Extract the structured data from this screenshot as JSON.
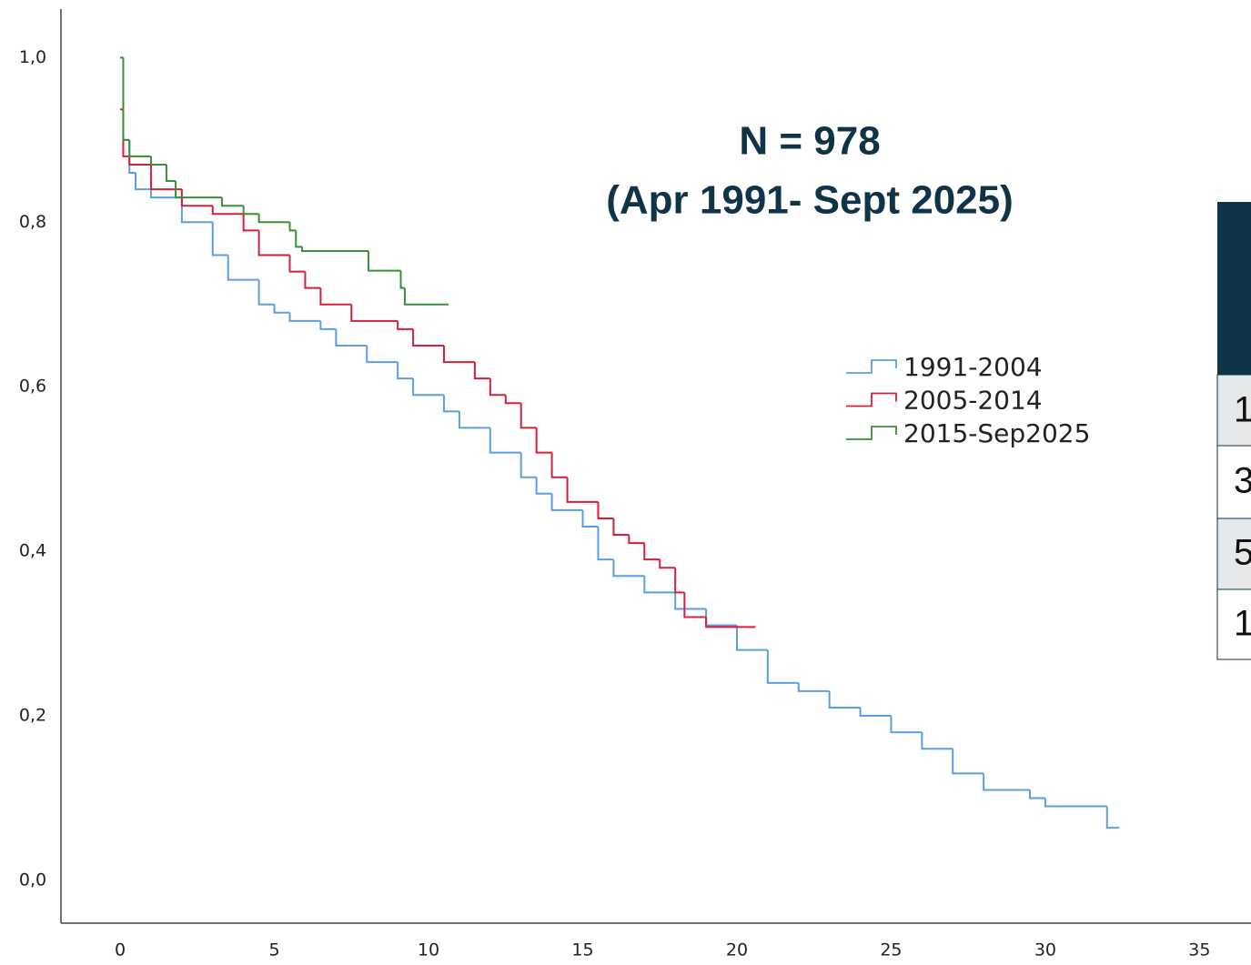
{
  "chart_data": {
    "type": "step",
    "annotations": [
      "N = 978",
      "(Apr 1991- Sept 2025)"
    ],
    "xlim": [
      -1.92,
      36.67
    ],
    "xticks": [
      0,
      5,
      10,
      15,
      20,
      25,
      30,
      35
    ],
    "ylim": [
      -0.052,
      1.059
    ],
    "yticks": [
      {
        "value": 0,
        "label": "0,0"
      },
      {
        "value": 0.2,
        "label": "0,2"
      },
      {
        "value": 0.4,
        "label": "0,4"
      },
      {
        "value": 0.6,
        "label": "0,6"
      },
      {
        "value": 0.8,
        "label": "0,8"
      },
      {
        "value": 1,
        "label": "1,0"
      }
    ],
    "series": [
      {
        "name": "1991-2004",
        "color": "#5b9ee6",
        "x": [
          0,
          0.1,
          0.3,
          0.5,
          1,
          2,
          3,
          3.5,
          4.5,
          5,
          5.5,
          6.5,
          7,
          8,
          9,
          9.5,
          10.5,
          11,
          12,
          13,
          13.5,
          14,
          15,
          15.5,
          16,
          17,
          18,
          19,
          20,
          21,
          22,
          23,
          24,
          25,
          26,
          27,
          28,
          29.5,
          30,
          32,
          32.4
        ],
        "values": [
          1.0,
          0.9,
          0.86,
          0.84,
          0.83,
          0.8,
          0.76,
          0.73,
          0.7,
          0.69,
          0.68,
          0.67,
          0.65,
          0.63,
          0.61,
          0.59,
          0.57,
          0.55,
          0.52,
          0.49,
          0.47,
          0.45,
          0.43,
          0.39,
          0.37,
          0.35,
          0.33,
          0.31,
          0.28,
          0.24,
          0.23,
          0.21,
          0.2,
          0.18,
          0.16,
          0.13,
          0.11,
          0.1,
          0.09,
          0.064,
          0.064
        ]
      },
      {
        "name": "2005-2014",
        "color": "#d81e3a",
        "x": [
          0,
          0.1,
          0.3,
          1,
          2,
          3,
          4,
          4.5,
          5.5,
          6,
          6.5,
          7.5,
          9,
          9.5,
          10.5,
          11.5,
          12,
          12.5,
          13,
          13.5,
          14,
          14.5,
          15.5,
          16,
          16.5,
          17,
          17.5,
          18,
          18.3,
          19,
          20.6
        ],
        "values": [
          0.937,
          0.88,
          0.87,
          0.84,
          0.82,
          0.81,
          0.79,
          0.76,
          0.74,
          0.72,
          0.7,
          0.68,
          0.67,
          0.65,
          0.63,
          0.61,
          0.59,
          0.58,
          0.55,
          0.52,
          0.49,
          0.46,
          0.44,
          0.42,
          0.41,
          0.39,
          0.38,
          0.35,
          0.32,
          0.308,
          0.308
        ]
      },
      {
        "name": "2015-Sep2025",
        "color": "#3a8f3a",
        "x": [
          0,
          0.1,
          0.3,
          1,
          1.5,
          1.8,
          3.3,
          4,
          4.5,
          5.5,
          5.7,
          5.9,
          8.05,
          9.1,
          9.23,
          10.65
        ],
        "values": [
          1.0,
          0.9,
          0.88,
          0.87,
          0.85,
          0.83,
          0.82,
          0.81,
          0.8,
          0.79,
          0.77,
          0.765,
          0.741,
          0.72,
          0.7,
          0.7
        ]
      }
    ]
  },
  "table": {
    "rows": [
      "1",
      "3",
      "5",
      "1"
    ]
  }
}
